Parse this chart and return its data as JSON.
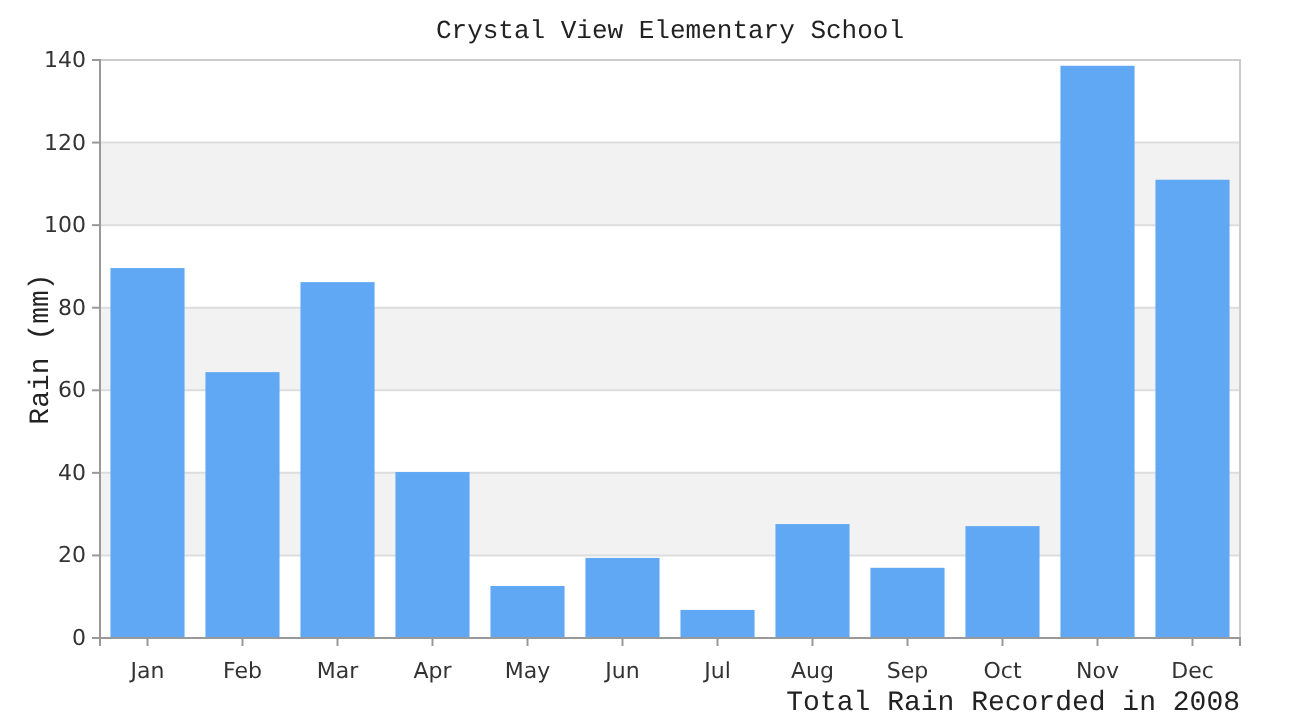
{
  "chart_data": {
    "type": "bar",
    "title": "Crystal View Elementary School",
    "ylabel": "Rain (mm)",
    "annotations": [
      "Total Rain Recorded in 2008"
    ],
    "categories": [
      "Jan",
      "Feb",
      "Mar",
      "Apr",
      "May",
      "Jun",
      "Jul",
      "Aug",
      "Sep",
      "Oct",
      "Nov",
      "Dec"
    ],
    "values": [
      89.6,
      64.4,
      86.2,
      40.2,
      12.6,
      19.4,
      6.8,
      27.6,
      17,
      27.1,
      138.6,
      111
    ],
    "color": "#60a8f4",
    "ylim": [
      0,
      140
    ],
    "yticks": [
      0,
      20,
      40,
      60,
      80,
      100,
      120,
      140
    ],
    "grid": "y"
  }
}
